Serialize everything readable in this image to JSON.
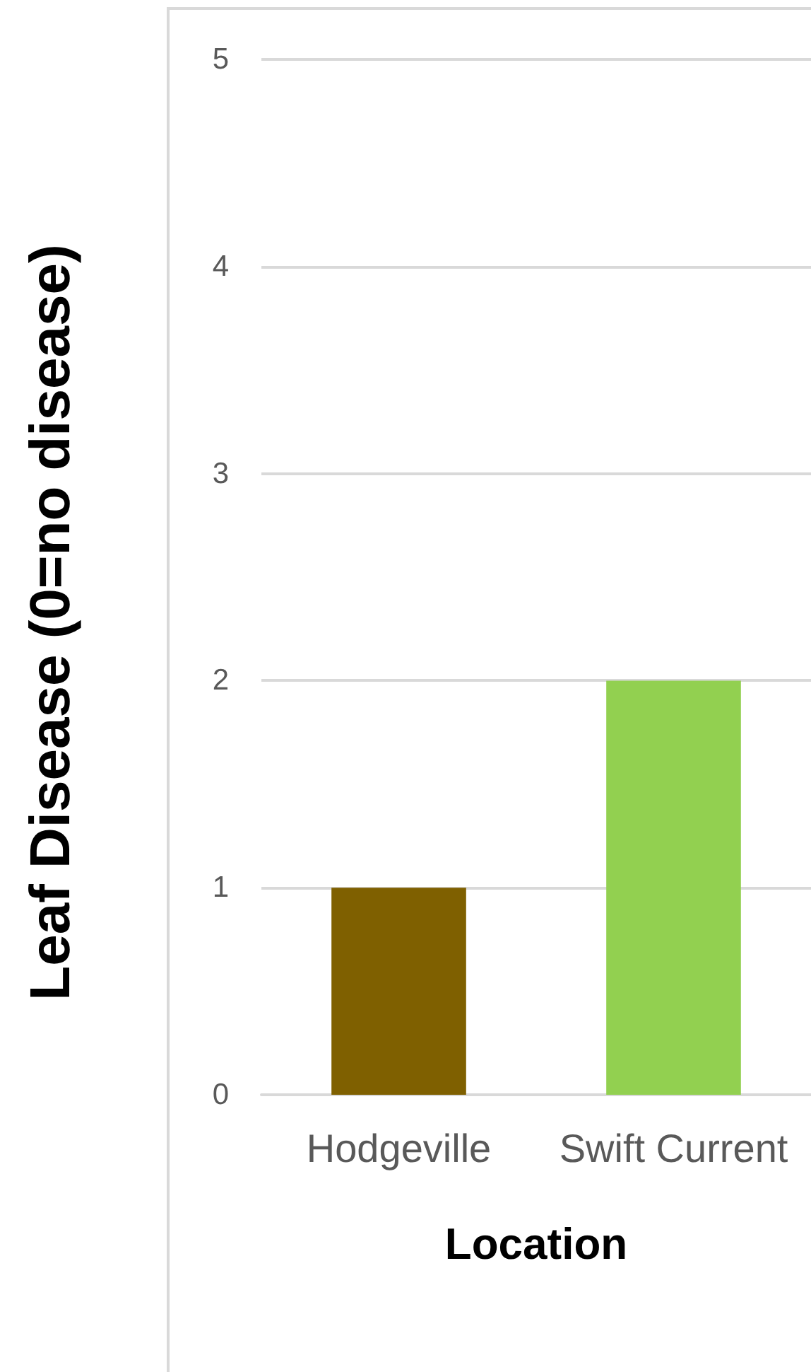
{
  "chart_data": {
    "type": "bar",
    "categories": [
      "Hodgeville",
      "Swift Current"
    ],
    "values": [
      1,
      2
    ],
    "colors": [
      "#7f6000",
      "#92d050"
    ],
    "xlabel": "Location",
    "ylabel": "Leaf Disease (0=no disease)",
    "ylim": [
      0,
      5
    ],
    "yticks": [
      0,
      1,
      2,
      3,
      4,
      5
    ],
    "grid": "y"
  }
}
